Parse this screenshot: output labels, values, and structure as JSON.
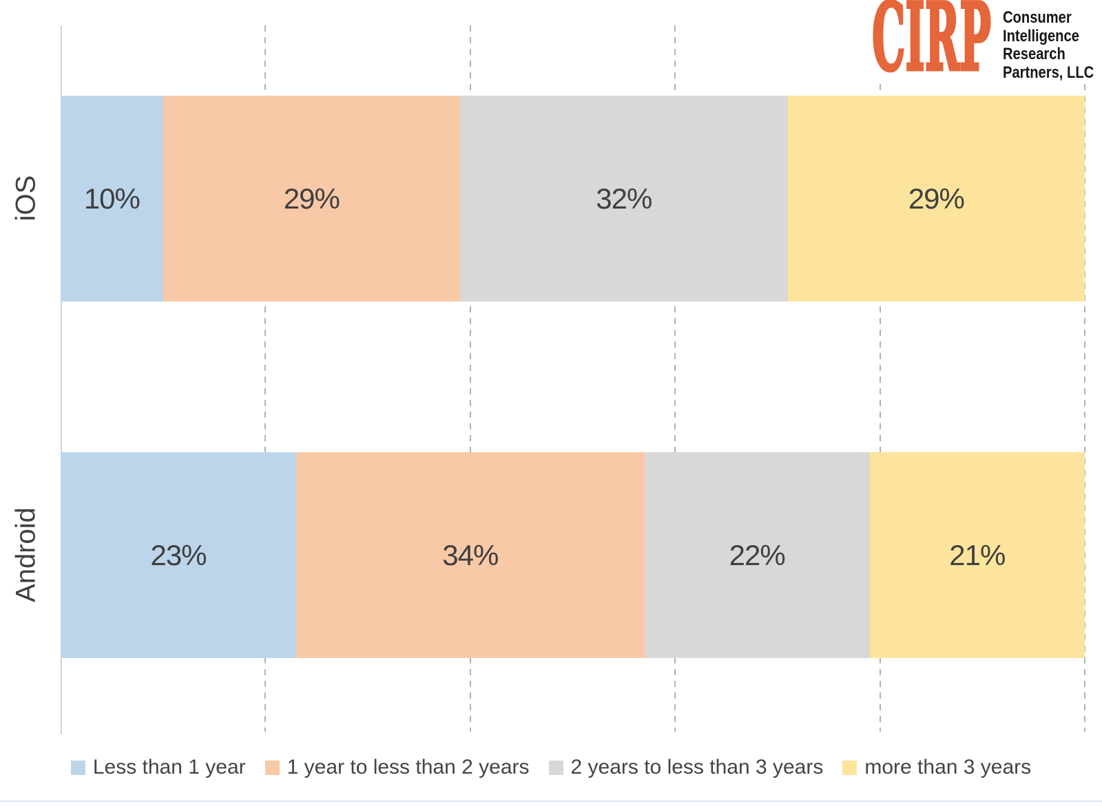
{
  "brand": {
    "logo_text": "CIRP",
    "logo_color": "#e4663a",
    "name_lines": [
      "Consumer",
      "Intelligence",
      "Research",
      "Partners, LLC"
    ]
  },
  "chart_data": {
    "type": "bar",
    "variant": "horizontal-stacked",
    "title": "",
    "categories": [
      "iOS",
      "Android"
    ],
    "series": [
      {
        "name": "Less than 1 year",
        "color": "#bcd5eb",
        "values": [
          10,
          23
        ]
      },
      {
        "name": "1 year to less than 2 years",
        "color": "#f8c9a6",
        "values": [
          29,
          34
        ]
      },
      {
        "name": "2 years to less than 3 years",
        "color": "#d9d8d6",
        "values": [
          32,
          22
        ]
      },
      {
        "name": "more than 3 years",
        "color": "#fce49c",
        "values": [
          29,
          21
        ]
      }
    ],
    "label_suffix": "%",
    "xlim": [
      0,
      100
    ],
    "gridlines_percent": [
      20,
      40,
      60,
      80,
      100
    ],
    "gridline_style": "dashed",
    "grid": true,
    "legend_position": "bottom",
    "value_labels_shown": true,
    "text_colors": {
      "value_label": "#3f3f3f",
      "category_label": "#404040",
      "legend_label": "#444444"
    }
  }
}
